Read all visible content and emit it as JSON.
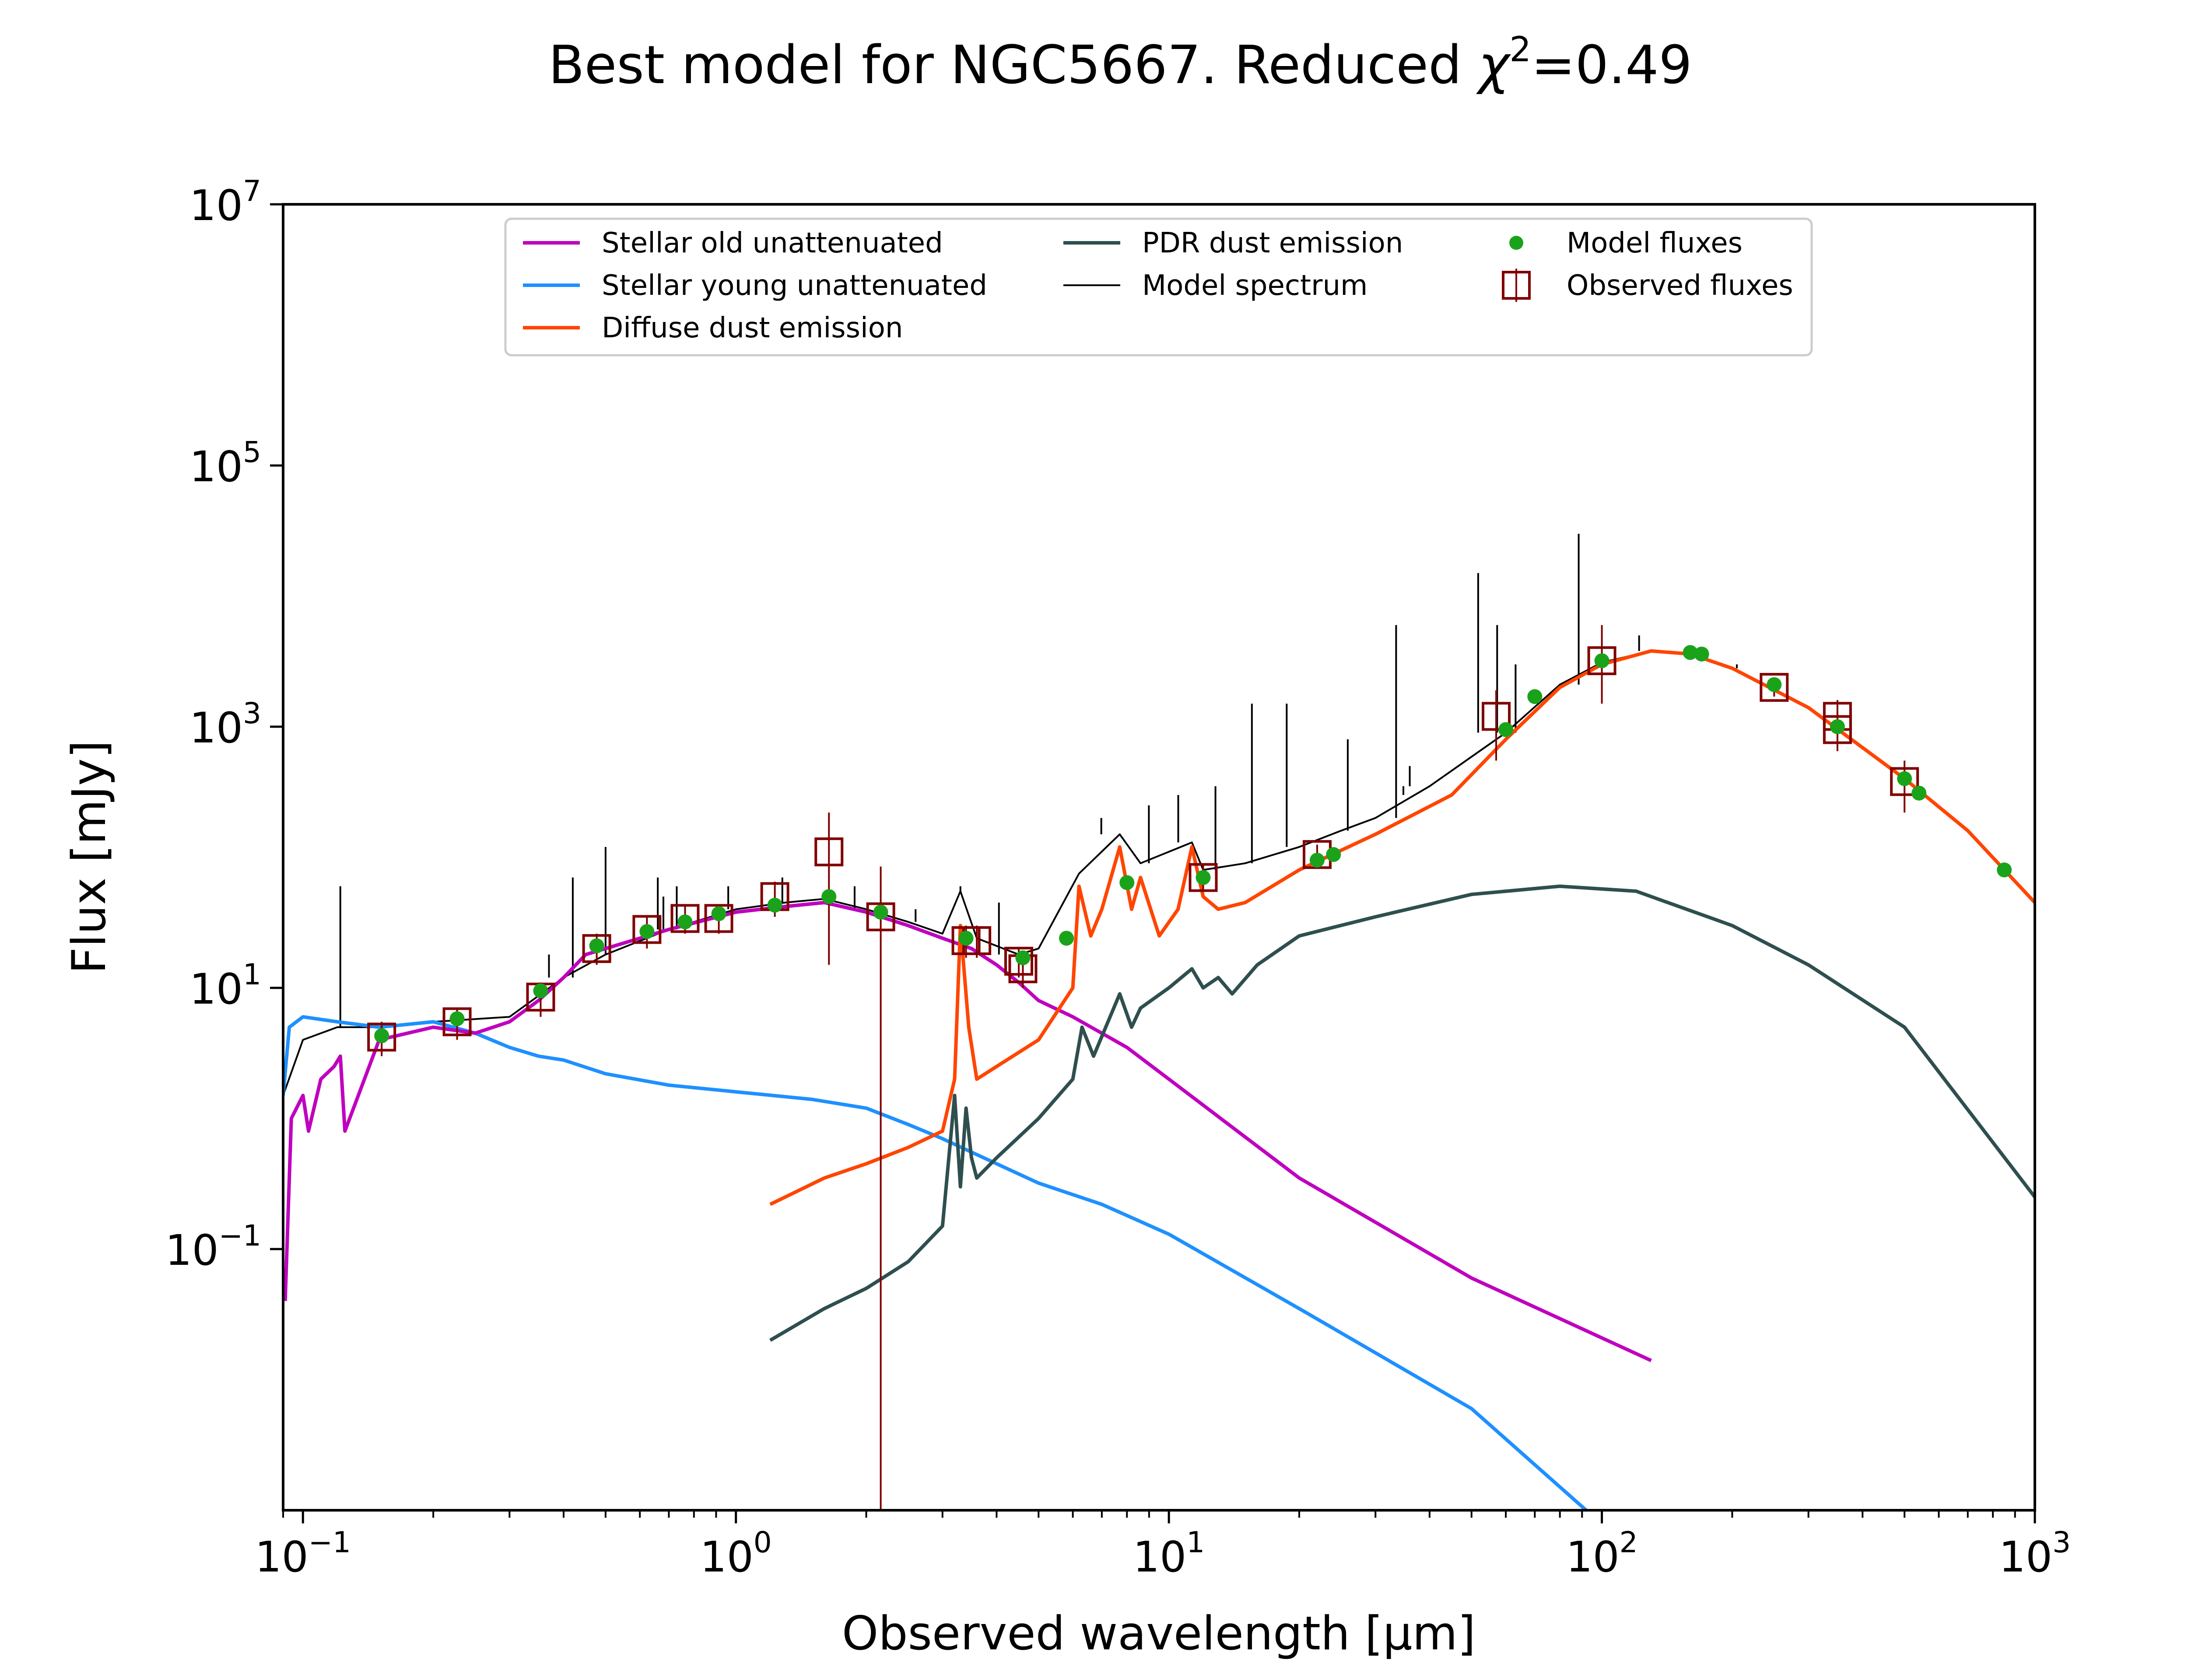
{
  "chart_data": {
    "type": "line",
    "title": "Best model for NGC5667. Reduced χ²=0.49",
    "title_parts": {
      "prefix": "Best model for NGC5667. Reduced ",
      "symbol": "χ",
      "superscript": "2",
      "suffix": "=0.49"
    },
    "xlabel": "Observed wavelength [μm]",
    "ylabel": "Flux [mJy]",
    "x_scale": "log",
    "y_scale": "log",
    "xlim": [
      0.09,
      1000
    ],
    "ylim": [
      0.001,
      10000000
    ],
    "x_ticks": [
      {
        "value": 0.1,
        "base": "10",
        "exp": "−1"
      },
      {
        "value": 1,
        "base": "10",
        "exp": "0"
      },
      {
        "value": 10,
        "base": "10",
        "exp": "1"
      },
      {
        "value": 100,
        "base": "10",
        "exp": "2"
      },
      {
        "value": 1000,
        "base": "10",
        "exp": "3"
      }
    ],
    "y_ticks": [
      {
        "value": 0.1,
        "base": "10",
        "exp": "−1"
      },
      {
        "value": 10,
        "base": "10",
        "exp": "1"
      },
      {
        "value": 1000,
        "base": "10",
        "exp": "3"
      },
      {
        "value": 100000,
        "base": "10",
        "exp": "5"
      },
      {
        "value": 10000000,
        "base": "10",
        "exp": "7"
      }
    ],
    "grid": false,
    "legend_placement": "top-center",
    "series": [
      {
        "name": "Stellar old unattenuated",
        "kind": "line",
        "color": "#bf00bf",
        "x": [
          0.091,
          0.094,
          0.1,
          0.103,
          0.11,
          0.118,
          0.122,
          0.125,
          0.15,
          0.2,
          0.25,
          0.3,
          0.35,
          0.4,
          0.45,
          0.55,
          0.7,
          1.0,
          1.3,
          1.6,
          2.0,
          2.5,
          3.0,
          3.5,
          4.0,
          4.5,
          5.0,
          6.0,
          8.0,
          10.0,
          20.0,
          50.0,
          130.0
        ],
        "y": [
          0.04,
          1.0,
          1.5,
          0.8,
          2.0,
          2.5,
          3.0,
          0.8,
          4.0,
          5.0,
          4.5,
          5.5,
          8.0,
          12.0,
          18.0,
          22.0,
          28.0,
          38.0,
          42.0,
          45.0,
          38.0,
          30.0,
          24.0,
          20.0,
          15.0,
          11.0,
          8.0,
          6.0,
          3.5,
          2.0,
          0.35,
          0.06,
          0.014
        ]
      },
      {
        "name": "Stellar young unattenuated",
        "kind": "line",
        "color": "#1e90ff",
        "x": [
          0.09,
          0.093,
          0.1,
          0.12,
          0.15,
          0.2,
          0.25,
          0.3,
          0.35,
          0.4,
          0.5,
          0.7,
          1.0,
          1.5,
          2.0,
          2.5,
          3.0,
          4.0,
          5.0,
          7.0,
          10.0,
          20.0,
          50.0,
          92.0
        ],
        "y": [
          1.5,
          5.0,
          6.0,
          5.5,
          5.0,
          5.5,
          4.5,
          3.5,
          3.0,
          2.8,
          2.2,
          1.8,
          1.6,
          1.4,
          1.2,
          0.9,
          0.7,
          0.45,
          0.32,
          0.22,
          0.13,
          0.035,
          0.006,
          0.001
        ]
      },
      {
        "name": "Diffuse dust emission",
        "kind": "line",
        "color": "#ff4500",
        "x": [
          1.2,
          1.6,
          2.0,
          2.5,
          3.0,
          3.2,
          3.3,
          3.45,
          3.6,
          4.0,
          5.0,
          6.0,
          6.2,
          6.6,
          7.0,
          7.7,
          8.2,
          8.6,
          9.5,
          10.5,
          11.3,
          12.0,
          13.0,
          15.0,
          20.0,
          30.0,
          45.0,
          60.0,
          80.0,
          100.0,
          130.0,
          160.0,
          200.0,
          300.0,
          500.0,
          700.0,
          1000.0
        ],
        "y": [
          0.22,
          0.35,
          0.45,
          0.6,
          0.8,
          2.0,
          30.0,
          5.0,
          2.0,
          2.5,
          4.0,
          10.0,
          60.0,
          25.0,
          40.0,
          120.0,
          40.0,
          70.0,
          25.0,
          40.0,
          120.0,
          50.0,
          40.0,
          45.0,
          80.0,
          150.0,
          300.0,
          800.0,
          2000.0,
          3000.0,
          3800.0,
          3600.0,
          2800.0,
          1400.0,
          400.0,
          160.0,
          45.0
        ]
      },
      {
        "name": "PDR dust emission",
        "kind": "line",
        "color": "#2f4f4f",
        "x": [
          1.2,
          1.6,
          2.0,
          2.5,
          3.0,
          3.2,
          3.3,
          3.4,
          3.5,
          3.6,
          4.0,
          5.0,
          6.0,
          6.3,
          6.7,
          7.7,
          8.2,
          8.6,
          10.0,
          11.3,
          12.0,
          13.0,
          14.0,
          16.0,
          20.0,
          30.0,
          50.0,
          80.0,
          120.0,
          200.0,
          300.0,
          500.0,
          1000.0
        ],
        "y": [
          0.02,
          0.035,
          0.05,
          0.08,
          0.15,
          1.5,
          0.3,
          1.2,
          0.5,
          0.35,
          0.5,
          1.0,
          2.0,
          5.0,
          3.0,
          9.0,
          5.0,
          7.0,
          10.0,
          14.0,
          10.0,
          12.0,
          9.0,
          15.0,
          25.0,
          35.0,
          52.0,
          60.0,
          55.0,
          30.0,
          15.0,
          5.0,
          0.25
        ]
      },
      {
        "name": "Model spectrum",
        "kind": "line",
        "color": "#000000",
        "x": [
          0.09,
          0.1,
          0.12,
          0.15,
          0.2,
          0.3,
          0.4,
          0.5,
          0.7,
          1.0,
          1.3,
          1.6,
          2.0,
          2.5,
          3.0,
          3.3,
          3.6,
          4.5,
          5.0,
          6.2,
          7.7,
          8.6,
          11.3,
          12.0,
          15.0,
          20.0,
          25.0,
          30.0,
          40.0,
          60.0,
          80.0,
          100.0,
          130.0,
          160.0,
          200.0,
          300.0,
          500.0,
          700.0,
          1000.0
        ],
        "y": [
          1.5,
          4.0,
          5.0,
          5.0,
          5.5,
          6.0,
          12.0,
          18.0,
          28.0,
          40.0,
          45.0,
          48.0,
          40.0,
          32.0,
          26.0,
          55.0,
          24.0,
          18.0,
          20.0,
          75.0,
          150.0,
          90.0,
          130.0,
          80.0,
          90.0,
          120.0,
          160.0,
          200.0,
          350.0,
          900.0,
          2100.0,
          3100.0,
          3800.0,
          3600.0,
          2800.0,
          1400.0,
          400.0,
          160.0,
          45.0
        ],
        "lines_x": [
          0.122,
          0.37,
          0.42,
          0.5,
          0.66,
          0.68,
          0.73,
          0.96,
          1.28,
          1.88,
          2.6,
          3.3,
          4.05,
          6.98,
          8.99,
          10.51,
          12.81,
          15.55,
          18.71,
          25.89,
          33.48,
          34.8,
          36.0,
          51.8,
          57.3,
          63.2,
          88.4,
          121.9,
          157.7,
          205.0
        ],
        "lines_y": [
          60.0,
          18.0,
          70.0,
          120.0,
          70.0,
          50.0,
          60.0,
          60.0,
          70.0,
          60.0,
          40.0,
          60.0,
          45.0,
          200.0,
          250.0,
          300.0,
          350.0,
          1500.0,
          1500.0,
          800.0,
          6000.0,
          300.0,
          500.0,
          15000.0,
          6000.0,
          3000.0,
          30000.0,
          5000.0,
          4000.0,
          3000.0
        ]
      },
      {
        "name": "Model fluxes",
        "kind": "scatter",
        "color": "#1aa31a",
        "x": [
          0.152,
          0.227,
          0.354,
          0.477,
          0.623,
          0.763,
          0.913,
          1.23,
          1.64,
          2.16,
          3.4,
          4.6,
          5.8,
          8.0,
          12.0,
          22.0,
          24.0,
          60.0,
          70.0,
          100.0,
          160.0,
          170.0,
          250.0,
          350.0,
          500.0,
          540.0,
          850.0
        ],
        "y": [
          4.3,
          5.8,
          9.5,
          21.0,
          27.0,
          32.0,
          37.0,
          43.0,
          50.0,
          38.0,
          24.0,
          17.0,
          24.0,
          64.0,
          70.0,
          95.0,
          105.0,
          950.0,
          1700.0,
          3200.0,
          3700.0,
          3600.0,
          2100.0,
          1000.0,
          400.0,
          310.0,
          80.0
        ]
      },
      {
        "name": "Observed fluxes",
        "kind": "errorbar",
        "color": "#800000",
        "x": [
          0.152,
          0.227,
          0.354,
          0.477,
          0.623,
          0.763,
          0.913,
          1.23,
          1.64,
          2.16,
          3.4,
          3.6,
          4.5,
          4.6,
          12.0,
          22.0,
          57.0,
          100.0,
          250.0,
          350.0,
          350.0,
          500.0
        ],
        "y": [
          4.2,
          5.5,
          8.5,
          20.0,
          28.0,
          34.0,
          34.0,
          50.0,
          110.0,
          35.0,
          23.0,
          23.0,
          16.0,
          14.0,
          70.0,
          105.0,
          1200.0,
          3200.0,
          2000.0,
          1200.0,
          950.0,
          380.0
        ],
        "y_low": [
          3.0,
          4.0,
          6.0,
          15.0,
          20.0,
          26.0,
          26.0,
          35.0,
          15.0,
          0.001,
          17.0,
          17.0,
          12.0,
          10.0,
          55.0,
          90.0,
          550.0,
          1500.0,
          1700.0,
          900.0,
          650.0,
          220.0
        ],
        "y_high": [
          5.5,
          7.0,
          11.0,
          26.0,
          36.0,
          42.0,
          42.0,
          65.0,
          220.0,
          85.0,
          30.0,
          30.0,
          20.0,
          18.0,
          90.0,
          125.0,
          1900.0,
          6000.0,
          2300.0,
          1600.0,
          1300.0,
          550.0
        ]
      }
    ]
  }
}
